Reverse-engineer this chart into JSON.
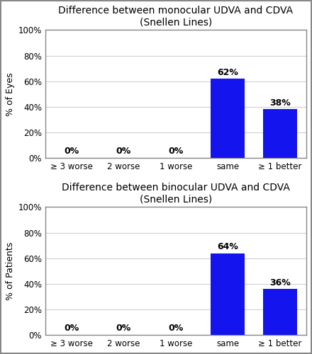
{
  "charts": [
    {
      "title": "Difference between monocular UDVA and CDVA\n(Snellen Lines)",
      "ylabel": "% of Eyes",
      "categories": [
        "≥ 3 worse",
        "2 worse",
        "1 worse",
        "same",
        "≥ 1 better"
      ],
      "values": [
        0,
        0,
        0,
        62,
        38
      ],
      "bar_color": "#1414ee",
      "ylim": [
        0,
        100
      ],
      "yticks": [
        0,
        20,
        40,
        60,
        80,
        100
      ],
      "ytick_labels": [
        "0%",
        "20%",
        "40%",
        "60%",
        "80%",
        "100%"
      ]
    },
    {
      "title": "Difference between binocular UDVA and CDVA\n(Snellen Lines)",
      "ylabel": "% of Patients",
      "categories": [
        "≥ 3 worse",
        "2 worse",
        "1 worse",
        "same",
        "≥ 1 better"
      ],
      "values": [
        0,
        0,
        0,
        64,
        36
      ],
      "bar_color": "#1414ee",
      "ylim": [
        0,
        100
      ],
      "yticks": [
        0,
        20,
        40,
        60,
        80,
        100
      ],
      "ytick_labels": [
        "0%",
        "20%",
        "40%",
        "60%",
        "80%",
        "100%"
      ]
    }
  ],
  "background_color": "#ffffff",
  "plot_bg_color": "#ffffff",
  "panel_border_color": "#888888",
  "grid_color": "#d0d0d0",
  "label_fontsize": 9,
  "title_fontsize": 10,
  "tick_fontsize": 8.5,
  "bar_label_fontsize": 9,
  "figure_border_color": "#888888",
  "bar_width": 0.65
}
